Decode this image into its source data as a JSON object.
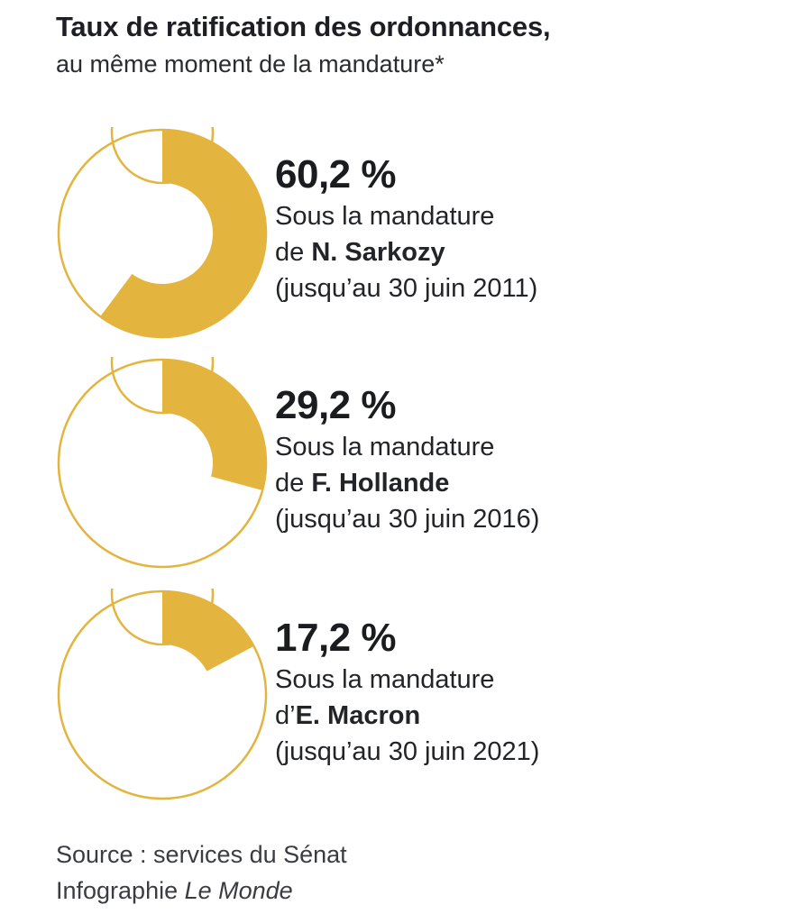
{
  "header": {
    "title": "Taux de ratification des ordonnances,",
    "subtitle": "au même moment de la mandature*"
  },
  "colors": {
    "accent": "#e3b53f",
    "outline": "#e3b53f",
    "background": "#ffffff"
  },
  "chart_data": {
    "type": "pie",
    "title": "Taux de ratification des ordonnances,",
    "subtitle": "au même moment de la mandature*",
    "series": [
      {
        "value": 60.2,
        "value_label": "60,2 %",
        "line1": "Sous la mandature",
        "prefix": "de ",
        "name": "N. Sarkozy",
        "period": "(jusqu’au 30 juin 2011)"
      },
      {
        "value": 29.2,
        "value_label": "29,2 %",
        "line1": "Sous la mandature",
        "prefix": "de ",
        "name": "F. Hollande",
        "period": "(jusqu’au 30 juin 2016)"
      },
      {
        "value": 17.2,
        "value_label": "17,2 %",
        "line1": "Sous la mandature",
        "prefix": "d’",
        "name": "E. Macron",
        "period": "(jusqu’au 30 juin 2021)"
      }
    ]
  },
  "footer": {
    "source": "Source : services du Sénat",
    "credit_prefix": "Infographie ",
    "credit_publication": "Le Monde"
  }
}
